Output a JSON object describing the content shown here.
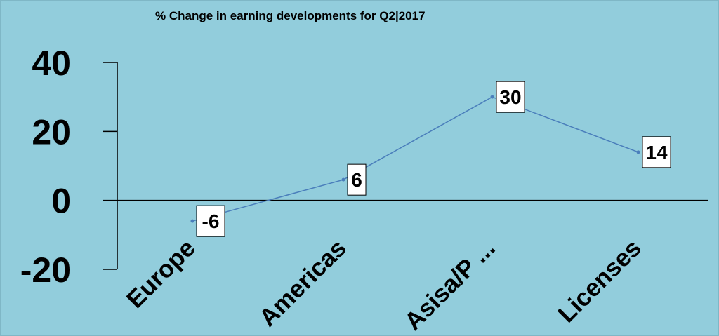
{
  "chart_data": {
    "type": "line",
    "title": "% Change in earning developments for Q2|2017",
    "categories": [
      "Europe",
      "Americas",
      "Asisa/P ...",
      "Licenses"
    ],
    "series": [
      {
        "values": [
          -6,
          6,
          30,
          14
        ]
      }
    ],
    "data_labels": [
      "-6",
      "6",
      "30",
      "14"
    ],
    "ylim": [
      -20,
      40
    ],
    "yticks": [
      40,
      20,
      0,
      -20
    ],
    "xlabel": "",
    "ylabel": "",
    "grid": false,
    "legend": "none",
    "colors": {
      "background": "#92CDDC",
      "line": "#4A7EBB",
      "axis": "#000000",
      "label_box": "#FFFFFF"
    }
  }
}
